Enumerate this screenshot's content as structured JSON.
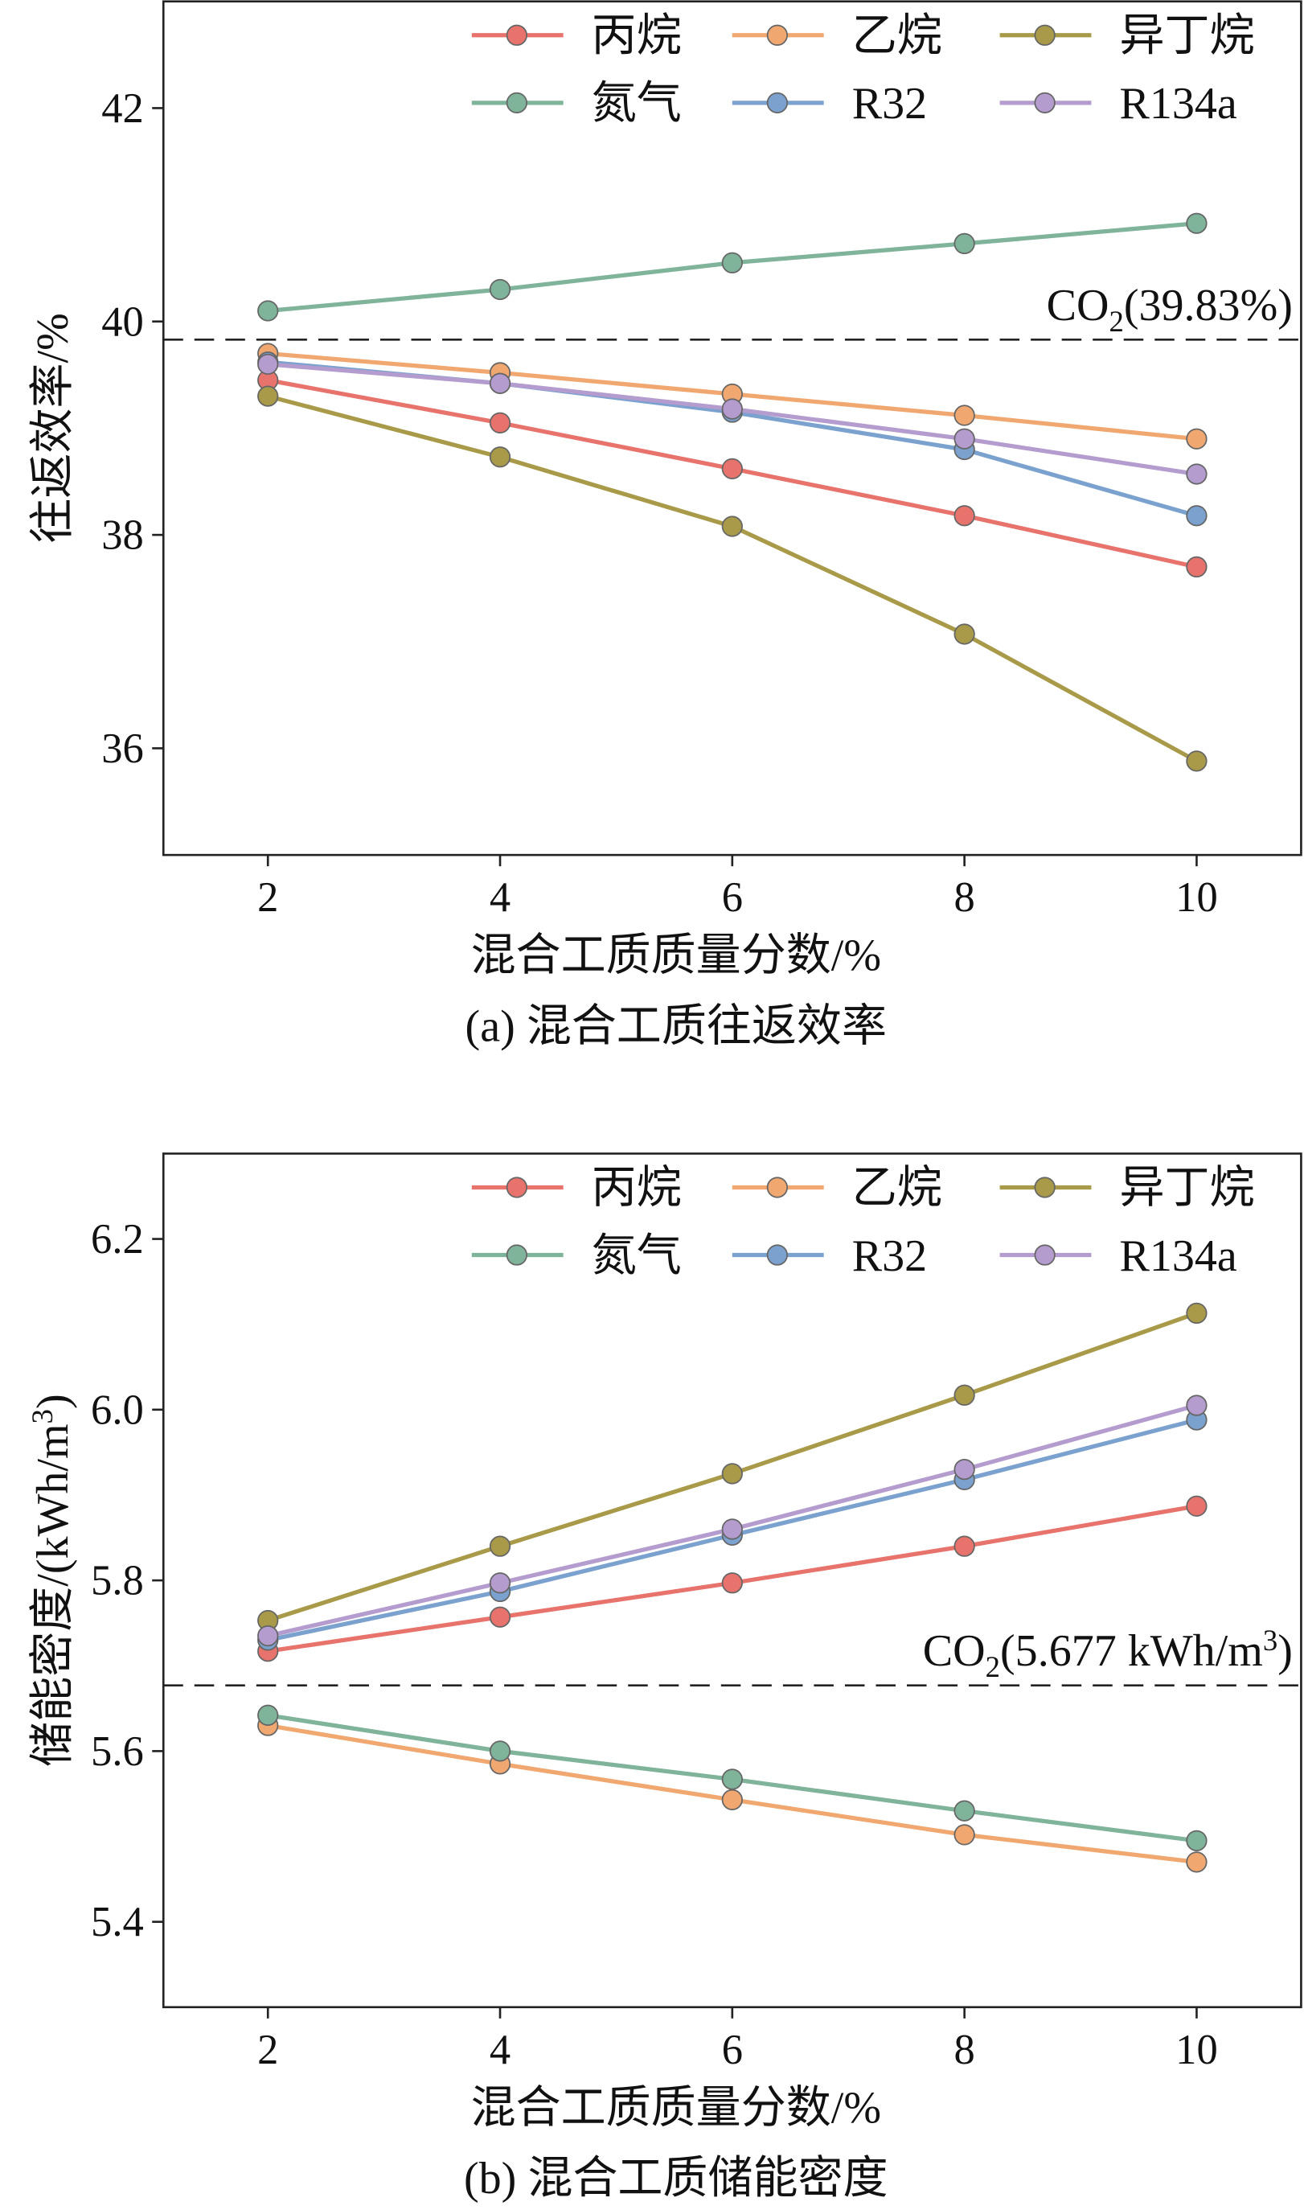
{
  "chart_data": [
    {
      "type": "line",
      "x": [
        2,
        4,
        6,
        8,
        10
      ],
      "xlim": [
        1.1,
        10.9
      ],
      "xticks": [
        2,
        4,
        6,
        8,
        10
      ],
      "ylim": [
        35,
        43
      ],
      "yticks": [
        36,
        38,
        40,
        42
      ],
      "xlabel": "混合工质质量分数/%",
      "ylabel": "往返效率/%",
      "caption": "(a) 混合工质往返效率",
      "reference": {
        "value": 39.83,
        "label": [
          {
            "text": "CO"
          },
          {
            "sub": "2"
          },
          {
            "text": "(39.83%)"
          }
        ]
      },
      "series": [
        {
          "name": "丙烷",
          "color": "#e8736c",
          "values": [
            39.45,
            39.05,
            38.62,
            38.18,
            37.7
          ]
        },
        {
          "name": "乙烷",
          "color": "#f0a870",
          "values": [
            39.7,
            39.52,
            39.32,
            39.12,
            38.9
          ]
        },
        {
          "name": "异丁烷",
          "color": "#a89a48",
          "values": [
            39.3,
            38.73,
            38.08,
            37.07,
            35.88
          ]
        },
        {
          "name": "氮气",
          "color": "#7fb39a",
          "values": [
            40.1,
            40.3,
            40.55,
            40.73,
            40.92
          ]
        },
        {
          "name": "R32",
          "color": "#7ba1cf",
          "values": [
            39.62,
            39.42,
            39.15,
            38.8,
            38.18
          ]
        },
        {
          "name": "R134a",
          "color": "#b49ccf",
          "values": [
            39.6,
            39.42,
            39.18,
            38.9,
            38.57
          ]
        }
      ]
    },
    {
      "type": "line",
      "x": [
        2,
        4,
        6,
        8,
        10
      ],
      "xlim": [
        1.1,
        10.9
      ],
      "xticks": [
        2,
        4,
        6,
        8,
        10
      ],
      "ylim": [
        5.3,
        6.3
      ],
      "yticks": [
        5.4,
        5.6,
        5.8,
        {
          "value": 6,
          "label": "6.0"
        },
        6.2
      ],
      "xlabel": "混合工质质量分数/%",
      "ylabel": [
        {
          "text": "储能密度/(kWh/m"
        },
        {
          "sup": "3"
        },
        {
          "text": ")"
        }
      ],
      "caption": "(b) 混合工质储能密度",
      "reference": {
        "value": 5.677,
        "label": [
          {
            "text": "CO"
          },
          {
            "sub": "2"
          },
          {
            "text": "(5.677 kWh/m"
          },
          {
            "sup": "3"
          },
          {
            "text": ")"
          }
        ]
      },
      "series": [
        {
          "name": "丙烷",
          "color": "#e8736c",
          "values": [
            5.717,
            5.757,
            5.797,
            5.84,
            5.887
          ]
        },
        {
          "name": "乙烷",
          "color": "#f0a870",
          "values": [
            5.63,
            5.585,
            5.543,
            5.502,
            5.47
          ]
        },
        {
          "name": "异丁烷",
          "color": "#a89a48",
          "values": [
            5.753,
            5.84,
            5.925,
            6.017,
            6.113
          ]
        },
        {
          "name": "氮气",
          "color": "#7fb39a",
          "values": [
            5.642,
            5.6,
            5.567,
            5.53,
            5.495
          ]
        },
        {
          "name": "R32",
          "color": "#7ba1cf",
          "values": [
            5.73,
            5.787,
            5.853,
            5.918,
            5.988
          ]
        },
        {
          "name": "R134a",
          "color": "#b49ccf",
          "values": [
            5.735,
            5.797,
            5.86,
            5.93,
            6.005
          ]
        }
      ]
    }
  ]
}
